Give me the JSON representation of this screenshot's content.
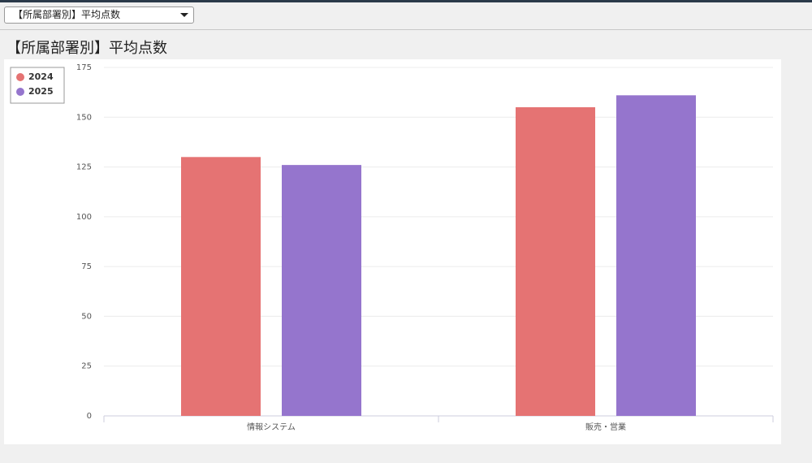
{
  "dropdown": {
    "selected": "【所属部署別】平均点数"
  },
  "chart_data": {
    "type": "bar",
    "title": "【所属部署別】平均点数",
    "categories": [
      "情報システム",
      "販売・営業"
    ],
    "series": [
      {
        "name": "2024",
        "color": "#e57373",
        "values": [
          130,
          155
        ]
      },
      {
        "name": "2025",
        "color": "#9575cd",
        "values": [
          126,
          161
        ]
      }
    ],
    "ylim": [
      0,
      175
    ],
    "yticks": [
      0,
      25,
      50,
      75,
      100,
      125,
      150,
      175
    ],
    "grid": true,
    "legend": "top-left"
  }
}
